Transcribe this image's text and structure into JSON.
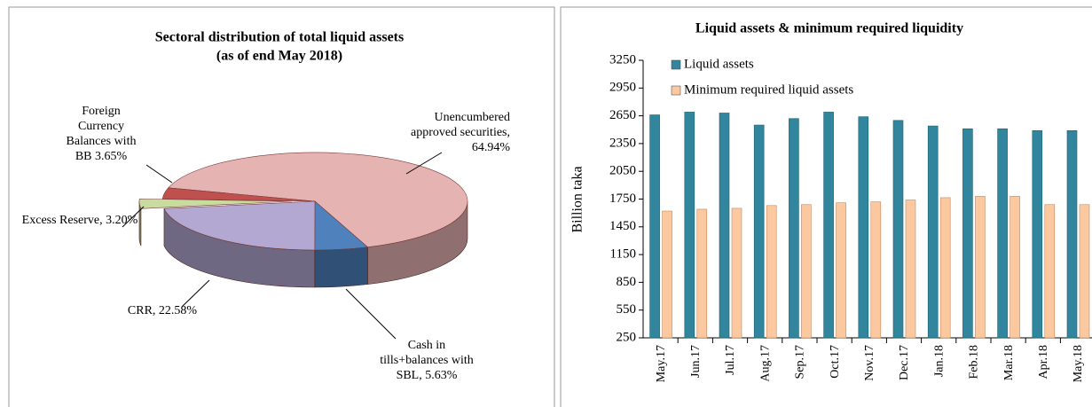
{
  "chart_data": [
    {
      "type": "pie3d",
      "title": "Sectoral distribution of total liquid assets",
      "subtitle": "(as of end May 2018)",
      "categories": [
        "Unencumbered approved securities,",
        "Cash in tills+balances with SBL,",
        "CRR,",
        "Excess Reserve,",
        "Foreign Currency Balances with BB"
      ],
      "values": [
        64.94,
        5.63,
        22.58,
        3.2,
        3.65
      ],
      "value_labels": [
        "64.94%",
        "5.63%",
        "22.58%",
        "3.20%",
        "3.65%"
      ],
      "colors": [
        "#e6b3b3",
        "#4f81bd",
        "#b2a8d2",
        "#c9dca0",
        "#c0504d"
      ]
    },
    {
      "type": "bar",
      "title": "Liquid assets & minimum required liquidity",
      "ylabel": "Billion taka",
      "categories": [
        "May.17",
        "Jun.17",
        "Jul.17",
        "Aug.17",
        "Sep.17",
        "Oct.17",
        "Nov.17",
        "Dec.17",
        "Jan.18",
        "Feb.18",
        "Mar.18",
        "Apr.18",
        "May.18"
      ],
      "series": [
        {
          "name": "Liquid assets",
          "color": "#31859c",
          "values": [
            2660,
            2690,
            2680,
            2550,
            2620,
            2690,
            2640,
            2600,
            2540,
            2510,
            2510,
            2490,
            2490
          ]
        },
        {
          "name": "Minimum required liquid assets",
          "color": "#fcc8a0",
          "values": [
            1620,
            1640,
            1650,
            1680,
            1690,
            1710,
            1720,
            1740,
            1765,
            1780,
            1780,
            1690,
            1690
          ]
        }
      ],
      "ylim": [
        250,
        3250
      ],
      "yticks": [
        250,
        550,
        850,
        1150,
        1450,
        1750,
        2050,
        2350,
        2650,
        2950,
        3250
      ],
      "legend": "upper left"
    }
  ]
}
